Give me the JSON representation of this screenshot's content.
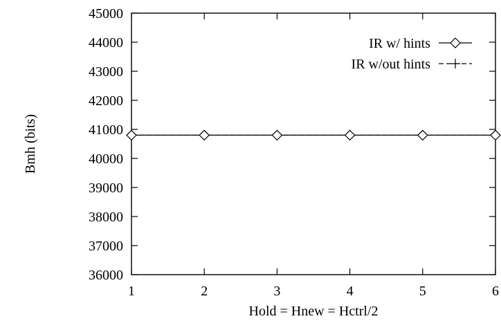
{
  "chart_data": {
    "type": "line",
    "title": "",
    "xlabel": "Hold = Hnew = Hctrl/2",
    "ylabel": "Bmh (bits)",
    "x": [
      1,
      2,
      3,
      4,
      5,
      6
    ],
    "xlim": [
      1,
      6
    ],
    "ylim": [
      36000,
      45000
    ],
    "xticks": [
      "1",
      "2",
      "3",
      "4",
      "5",
      "6"
    ],
    "yticks": [
      "36000",
      "37000",
      "38000",
      "39000",
      "40000",
      "41000",
      "42000",
      "43000",
      "44000",
      "45000"
    ],
    "grid": false,
    "legend_position": "top-right",
    "series": [
      {
        "name": "IR w/ hints",
        "marker": "diamond",
        "line_style": "solid",
        "color": "#000000",
        "values": [
          40800,
          40800,
          40800,
          40800,
          40800,
          40800
        ]
      },
      {
        "name": "IR w/out hints",
        "marker": "plus",
        "line_style": "dashed",
        "color": "#000000",
        "values": [
          40800,
          40800,
          40800,
          40800,
          40800,
          40800
        ]
      }
    ]
  }
}
